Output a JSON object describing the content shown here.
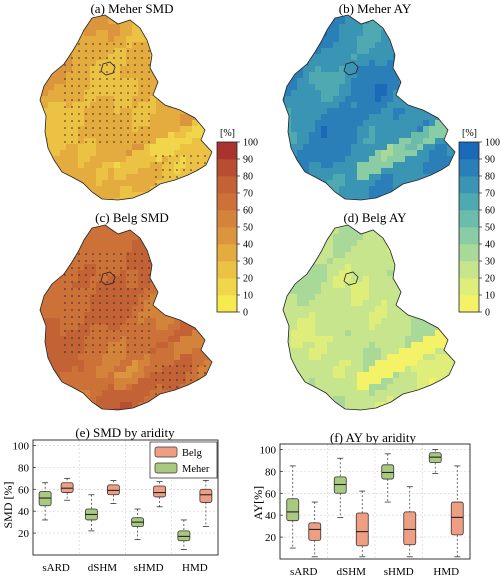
{
  "maps": [
    {
      "title": "(a) Meher SMD",
      "scheme": "smd",
      "level": 0.32
    },
    {
      "title": "(b) Meher AY",
      "scheme": "ay",
      "level": 0.78
    },
    {
      "title": "(c) Belg SMD",
      "scheme": "smd",
      "level": 0.68
    },
    {
      "title": "(d) Belg AY",
      "scheme": "ay",
      "level": 0.25
    }
  ],
  "colorbars": {
    "unit_label": "[%]",
    "ticks": [
      "100",
      "90",
      "80",
      "70",
      "60",
      "50",
      "40",
      "30",
      "20",
      "10",
      "0"
    ],
    "smd_colors": [
      "#f7ea4f",
      "#f1d54a",
      "#ecc244",
      "#e4ab3f",
      "#db963d",
      "#d4843a",
      "#cc7238",
      "#c26235",
      "#b84d32",
      "#a8332f"
    ],
    "ay_colors": [
      "#f4f266",
      "#dfee7a",
      "#c6e58c",
      "#a9d999",
      "#8acca4",
      "#6bbcab",
      "#4fa9b0",
      "#3a94b4",
      "#2a7fb8",
      "#1b6ab8"
    ]
  },
  "chart_data": [
    {
      "type": "box",
      "title": "(e) SMD by aridity",
      "ylabel": "SMD [%]",
      "xlabel": "",
      "categories": [
        "sARD",
        "dSHM",
        "sHMD",
        "HMD"
      ],
      "ylim": [
        0,
        105
      ],
      "yticks": [
        "20",
        "40",
        "60",
        "80",
        "100"
      ],
      "grid": true,
      "legend_position": "top-right",
      "series": [
        {
          "name": "Meher",
          "color": "#a8c97f",
          "boxes": [
            {
              "whisker_low": 32,
              "q1": 45,
              "median": 52,
              "q3": 58,
              "whisker_high": 66
            },
            {
              "whisker_low": 22,
              "q1": 32,
              "median": 37,
              "q3": 42,
              "whisker_high": 55
            },
            {
              "whisker_low": 14,
              "q1": 26,
              "median": 30,
              "q3": 34,
              "whisker_high": 42
            },
            {
              "whisker_low": 5,
              "q1": 13,
              "median": 17,
              "q3": 22,
              "whisker_high": 32
            }
          ]
        },
        {
          "name": "Belg",
          "color": "#ee9f83",
          "boxes": [
            {
              "whisker_low": 50,
              "q1": 57,
              "median": 61,
              "q3": 66,
              "whisker_high": 70
            },
            {
              "whisker_low": 47,
              "q1": 55,
              "median": 59,
              "q3": 64,
              "whisker_high": 68
            },
            {
              "whisker_low": 44,
              "q1": 53,
              "median": 57,
              "q3": 63,
              "whisker_high": 67
            },
            {
              "whisker_low": 26,
              "q1": 48,
              "median": 55,
              "q3": 60,
              "whisker_high": 68
            }
          ]
        }
      ]
    },
    {
      "type": "box",
      "title": "(f) AY by aridity",
      "ylabel": "AY[%]",
      "xlabel": "",
      "categories": [
        "sARD",
        "dSHM",
        "sHMD",
        "HMD"
      ],
      "ylim": [
        0,
        105
      ],
      "yticks": [
        "20",
        "40",
        "60",
        "80",
        "100"
      ],
      "grid": true,
      "series": [
        {
          "name": "Meher",
          "color": "#a8c97f",
          "boxes": [
            {
              "whisker_low": 10,
              "q1": 35,
              "median": 43,
              "q3": 55,
              "whisker_high": 85
            },
            {
              "whisker_low": 38,
              "q1": 60,
              "median": 68,
              "q3": 75,
              "whisker_high": 92
            },
            {
              "whisker_low": 52,
              "q1": 73,
              "median": 79,
              "q3": 86,
              "whisker_high": 96
            },
            {
              "whisker_low": 78,
              "q1": 88,
              "median": 93,
              "q3": 97,
              "whisker_high": 100
            }
          ]
        },
        {
          "name": "Belg",
          "color": "#ee9f83",
          "boxes": [
            {
              "whisker_low": 2,
              "q1": 17,
              "median": 27,
              "q3": 33,
              "whisker_high": 52
            },
            {
              "whisker_low": 2,
              "q1": 12,
              "median": 25,
              "q3": 42,
              "whisker_high": 62
            },
            {
              "whisker_low": 2,
              "q1": 13,
              "median": 27,
              "q3": 43,
              "whisker_high": 66
            },
            {
              "whisker_low": 2,
              "q1": 22,
              "median": 38,
              "q3": 52,
              "whisker_high": 85
            }
          ]
        }
      ]
    }
  ]
}
